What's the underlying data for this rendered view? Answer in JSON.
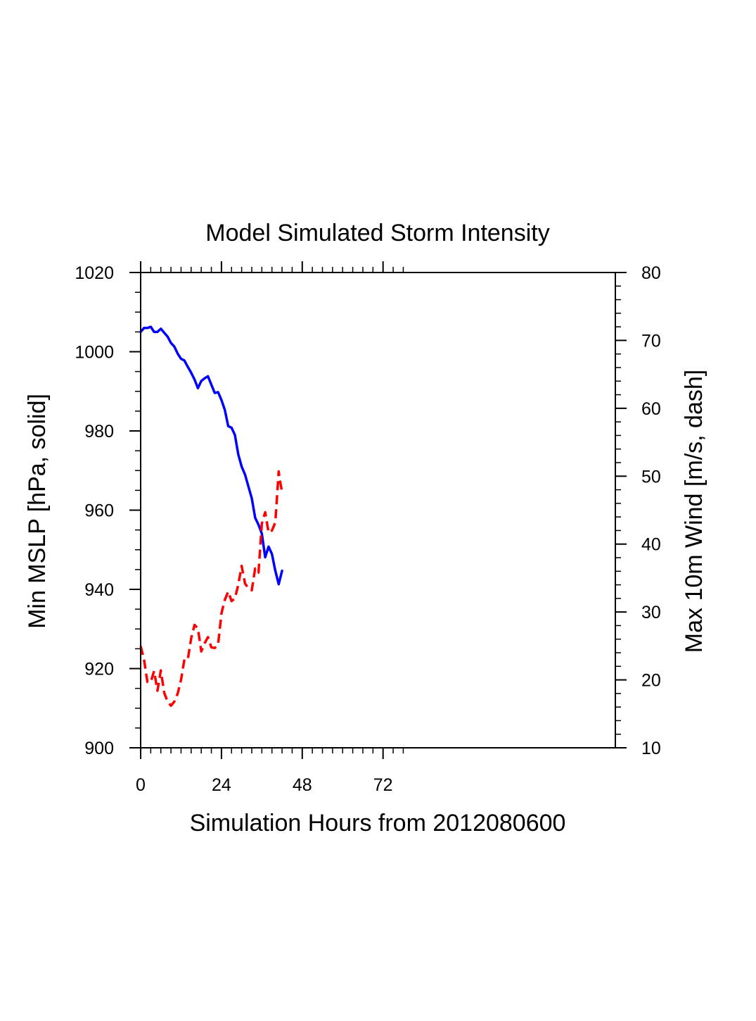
{
  "chart_data": {
    "type": "line",
    "title": "Model Simulated Storm Intensity",
    "xlabel": "Simulation Hours from 2012080600",
    "ylabel_left": "Min MSLP  [hPa, solid]",
    "ylabel_right": "Max 10m Wind  [m/s, dash]",
    "xlim": [
      0,
      141
    ],
    "ylim_left": [
      900,
      1020
    ],
    "ylim_right": [
      10,
      80
    ],
    "x_ticks": [
      0,
      24,
      48,
      72
    ],
    "y_ticks_left": [
      900,
      920,
      940,
      960,
      980,
      1000,
      1020
    ],
    "y_ticks_right": [
      10,
      20,
      30,
      40,
      50,
      60,
      70,
      80
    ],
    "grid": false,
    "series": [
      {
        "axis": "left",
        "color": "#0000ff",
        "style": "solid",
        "x": [
          0,
          1,
          2,
          3,
          4,
          5,
          6,
          7,
          8,
          9,
          10,
          11,
          12,
          13,
          14,
          15,
          16,
          17,
          18,
          19,
          20,
          21,
          22,
          23,
          24,
          25,
          26,
          27,
          28,
          29,
          30,
          31,
          32,
          33,
          34,
          35,
          36,
          37,
          38,
          39,
          40,
          41,
          42
        ],
        "y": [
          1005,
          1006,
          1006,
          1006.3,
          1005,
          1005,
          1005.8,
          1004.8,
          1003.8,
          1002.2,
          1001.3,
          999.5,
          998.2,
          997.8,
          996.2,
          994.7,
          993,
          990.8,
          992.6,
          993.3,
          993.8,
          991.7,
          989.6,
          989.8,
          987.8,
          985.3,
          981.2,
          980.8,
          979,
          974.1,
          971,
          969,
          966,
          963,
          958.1,
          956.3,
          954.1,
          948.1,
          950.8,
          948.9,
          944.7,
          941.3,
          944.7
        ]
      },
      {
        "axis": "right",
        "color": "#ff0000",
        "style": "dash",
        "x": [
          0,
          1,
          2,
          3,
          4,
          5,
          6,
          7,
          8,
          9,
          10,
          11,
          12,
          13,
          14,
          15,
          16,
          17,
          18,
          19,
          20,
          21,
          22,
          23,
          24,
          25,
          26,
          27,
          28,
          29,
          30,
          31,
          32,
          33,
          34,
          35,
          36,
          37,
          38,
          39,
          40,
          41,
          41.5,
          42
        ],
        "y": [
          25,
          23,
          19.7,
          19.7,
          21.3,
          18.4,
          21.4,
          18.1,
          16.8,
          16.2,
          16.8,
          18,
          20,
          23,
          23,
          26.1,
          28.1,
          27.6,
          24.2,
          25.4,
          26.3,
          24.8,
          24.7,
          25.2,
          29.8,
          31.8,
          33,
          31.6,
          32,
          34,
          36.8,
          34.2,
          33.5,
          33.2,
          36.4,
          35.8,
          43,
          44.7,
          41.7,
          42,
          43.2,
          50.7,
          49,
          47.7
        ]
      }
    ]
  }
}
